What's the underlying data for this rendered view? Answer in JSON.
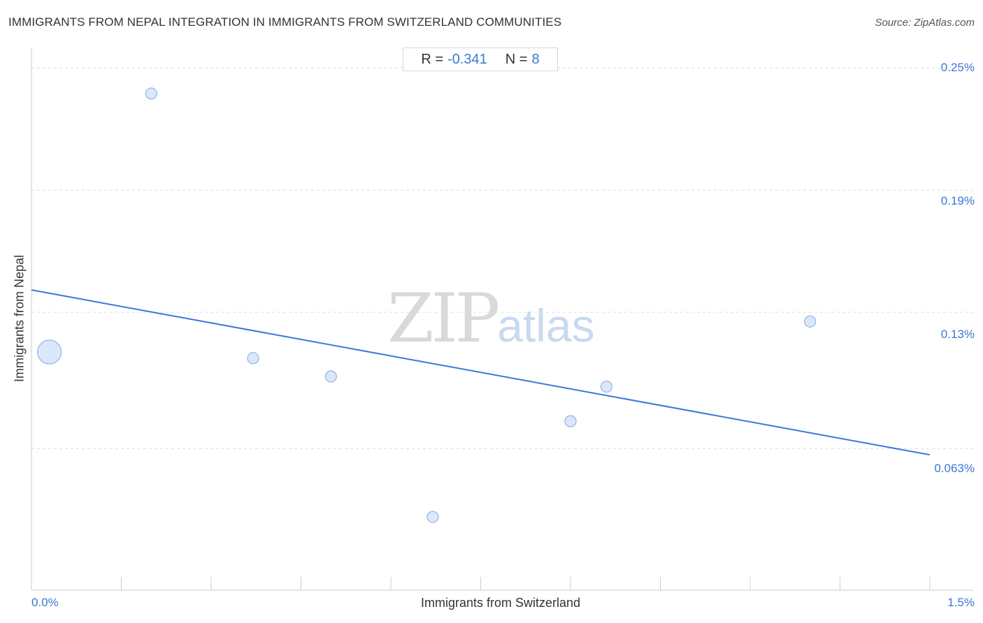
{
  "header": {
    "title": "IMMIGRANTS FROM NEPAL INTEGRATION IN IMMIGRANTS FROM SWITZERLAND COMMUNITIES",
    "source": "Source: ZipAtlas.com"
  },
  "stats": {
    "r_label": "R =",
    "r_value": "-0.341",
    "n_label": "N =",
    "n_value": "8"
  },
  "watermark": {
    "zip": "ZIP",
    "atlas": "atlas"
  },
  "colors": {
    "accent": "#3a78d4",
    "point_fill": "#cfe0f7",
    "point_stroke": "#8fb3e6",
    "grid": "#dddddd",
    "axis": "#cccccc"
  },
  "chart_data": {
    "type": "scatter",
    "title": "IMMIGRANTS FROM NEPAL INTEGRATION IN IMMIGRANTS FROM SWITZERLAND COMMUNITIES",
    "xlabel": "Immigrants from Switzerland",
    "ylabel": "Immigrants from Nepal",
    "x_tick_labels": [
      "0.0%",
      "1.5%"
    ],
    "y_tick_labels": [
      "0.25%",
      "0.19%",
      "0.13%",
      "0.063%"
    ],
    "y_ticks": [
      0.25,
      0.19,
      0.13,
      0.063
    ],
    "xlim": [
      0.0,
      1.5
    ],
    "ylim": [
      0.0,
      0.2625
    ],
    "grid": true,
    "points": [
      {
        "x": 0.03,
        "y": 0.117,
        "weight": 3
      },
      {
        "x": 0.2,
        "y": 0.244,
        "weight": 1
      },
      {
        "x": 0.37,
        "y": 0.114,
        "weight": 1
      },
      {
        "x": 0.5,
        "y": 0.105,
        "weight": 1
      },
      {
        "x": 0.67,
        "y": 0.036,
        "weight": 1
      },
      {
        "x": 0.9,
        "y": 0.083,
        "weight": 1
      },
      {
        "x": 0.96,
        "y": 0.1,
        "weight": 1
      },
      {
        "x": 1.3,
        "y": 0.132,
        "weight": 1
      }
    ],
    "trendline": {
      "x": [
        0.0,
        1.5
      ],
      "y": [
        0.1475,
        0.0665
      ]
    },
    "stats": {
      "r": -0.341,
      "n": 8
    }
  }
}
